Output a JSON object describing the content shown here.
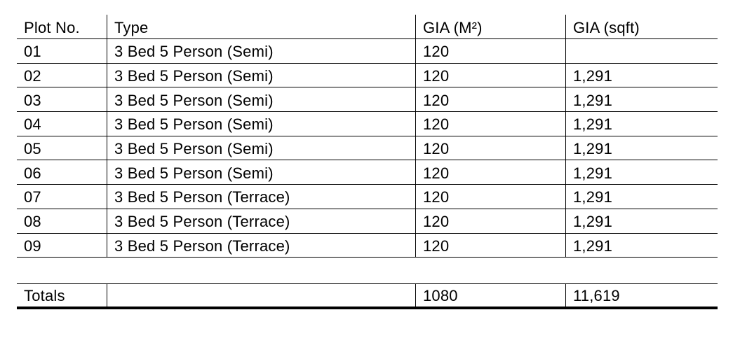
{
  "table": {
    "columns": [
      {
        "label": "Plot No."
      },
      {
        "label": "Type"
      },
      {
        "label": "GIA (M²)"
      },
      {
        "label": "GIA (sqft)"
      }
    ],
    "rows": [
      {
        "plot": "01",
        "type": "3 Bed 5 Person (Semi)",
        "gia_m2": "120",
        "gia_sqft": ""
      },
      {
        "plot": "02",
        "type": "3 Bed 5 Person (Semi)",
        "gia_m2": "120",
        "gia_sqft": "1,291"
      },
      {
        "plot": "03",
        "type": "3 Bed 5 Person (Semi)",
        "gia_m2": "120",
        "gia_sqft": "1,291"
      },
      {
        "plot": "04",
        "type": "3 Bed 5 Person (Semi)",
        "gia_m2": "120",
        "gia_sqft": "1,291"
      },
      {
        "plot": "05",
        "type": "3 Bed 5 Person (Semi)",
        "gia_m2": "120",
        "gia_sqft": "1,291"
      },
      {
        "plot": "06",
        "type": "3 Bed 5 Person (Semi)",
        "gia_m2": "120",
        "gia_sqft": "1,291"
      },
      {
        "plot": "07",
        "type": "3 Bed 5 Person (Terrace)",
        "gia_m2": "120",
        "gia_sqft": "1,291"
      },
      {
        "plot": "08",
        "type": "3 Bed 5 Person (Terrace)",
        "gia_m2": "120",
        "gia_sqft": "1,291"
      },
      {
        "plot": "09",
        "type": "3 Bed 5 Person (Terrace)",
        "gia_m2": "120",
        "gia_sqft": "1,291"
      }
    ],
    "totals": {
      "label": "Totals",
      "type": "",
      "gia_m2": "1080",
      "gia_sqft": "11,619"
    }
  },
  "colors": {
    "line": "#000000",
    "text": "#000000",
    "background": "#ffffff"
  }
}
